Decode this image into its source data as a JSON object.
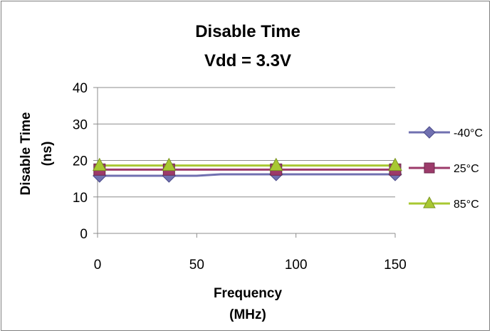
{
  "chart_data": {
    "type": "line",
    "title": "Disable Time",
    "subtitle": "Vdd = 3.3V",
    "xlabel": "Frequency",
    "xlabel_unit": "(MHz)",
    "ylabel": "Disable Time",
    "ylabel_unit": "(ns)",
    "xlim": [
      0,
      150
    ],
    "ylim": [
      0,
      40
    ],
    "xticks": [
      0,
      50,
      100,
      150
    ],
    "yticks": [
      0,
      10,
      20,
      30,
      40
    ],
    "grid": "horizontal",
    "legend_position": "right",
    "series": [
      {
        "name": "-40°C",
        "color": "#7070B0",
        "marker": "diamond",
        "x": [
          1,
          36,
          50,
          62,
          90,
          150
        ],
        "y": [
          15.8,
          15.8,
          15.8,
          16.2,
          16.2,
          16.2
        ]
      },
      {
        "name": "25°C",
        "color": "#9C3A6A",
        "marker": "square",
        "x": [
          1,
          36,
          90,
          150
        ],
        "y": [
          17.5,
          17.5,
          17.5,
          17.5
        ]
      },
      {
        "name": "85°C",
        "color": "#A8C832",
        "marker": "triangle",
        "x": [
          1,
          36,
          90,
          150
        ],
        "y": [
          18.6,
          18.6,
          18.6,
          18.6
        ]
      }
    ],
    "marker_x": [
      [
        1,
        36,
        90,
        150
      ],
      [
        1,
        36,
        90,
        150
      ],
      [
        1,
        36,
        90,
        150
      ]
    ]
  }
}
